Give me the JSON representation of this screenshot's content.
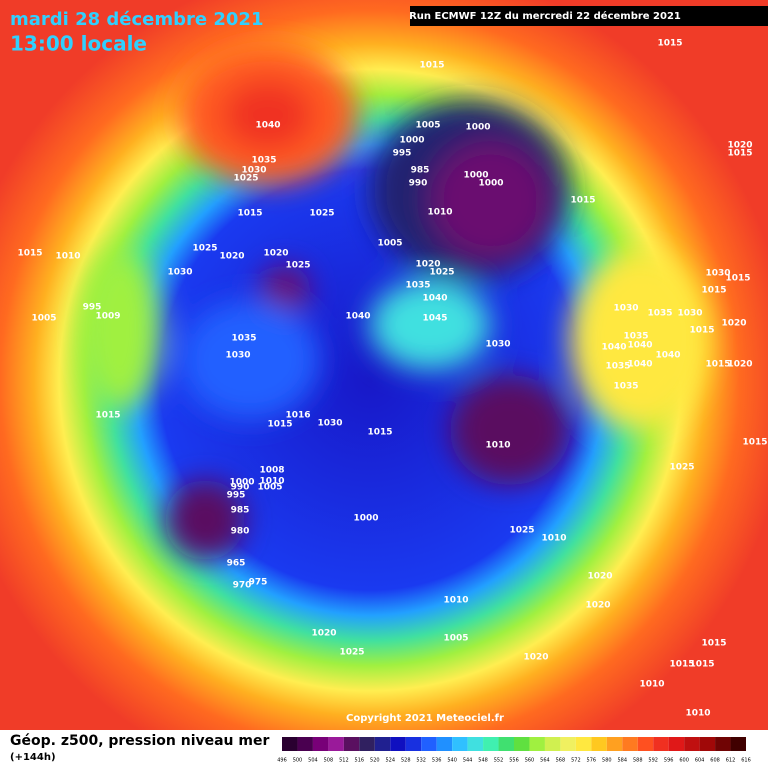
{
  "header": {
    "date": "mardi 28 décembre 2021",
    "time": "13:00 locale",
    "run": "Run ECMWF 12Z du mercredi 22 décembre 2021"
  },
  "footer": {
    "copyright": "Copyright 2021 Meteociel.fr",
    "caption": "Géop. z500, pression niveau mer",
    "lead": "(+144h)"
  },
  "isobar_labels": [
    1015,
    1015,
    1040,
    1005,
    1000,
    1000,
    995,
    1035,
    1030,
    1025,
    985,
    990,
    1000,
    1000,
    1020,
    1015,
    1015,
    1015,
    1025,
    1010,
    1005,
    1015,
    1010,
    1025,
    1020,
    1020,
    1025,
    1030,
    1020,
    1025,
    1030,
    1015,
    1015,
    1035,
    1040,
    1030,
    1035,
    1030,
    995,
    1009,
    1005,
    1040,
    1045,
    1020,
    1015,
    1035,
    1035,
    1040,
    1040,
    1030,
    1030,
    1040,
    1015,
    1020,
    1035,
    1040,
    1035,
    1015,
    1016,
    1015,
    1030,
    1015,
    1010,
    1015,
    1025,
    1008,
    1010,
    1000,
    1005,
    990,
    995,
    985,
    1000,
    1025,
    1010,
    980,
    965,
    975,
    970,
    1020,
    1010,
    1020,
    1020,
    1005,
    1025,
    1020,
    1015,
    1015,
    1015,
    1010,
    1010
  ],
  "colorbar": {
    "labels": [
      496,
      500,
      504,
      508,
      512,
      516,
      520,
      524,
      528,
      532,
      536,
      540,
      544,
      548,
      552,
      556,
      560,
      564,
      568,
      572,
      576,
      580,
      584,
      588,
      592,
      596,
      600,
      604,
      608,
      612,
      616
    ],
    "colors": [
      "#2a0030",
      "#4a0050",
      "#780078",
      "#9a1a9a",
      "#5a1060",
      "#302060",
      "#202090",
      "#1010c0",
      "#1830e0",
      "#2060ff",
      "#2090ff",
      "#30c0ff",
      "#40e0e0",
      "#40f0b0",
      "#40e070",
      "#60e040",
      "#a0f040",
      "#d0f050",
      "#f0f060",
      "#ffe840",
      "#ffc820",
      "#ffa020",
      "#ff7a20",
      "#ff5020",
      "#f03020",
      "#e01818",
      "#c01010",
      "#a00808",
      "#700404",
      "#400000"
    ]
  }
}
